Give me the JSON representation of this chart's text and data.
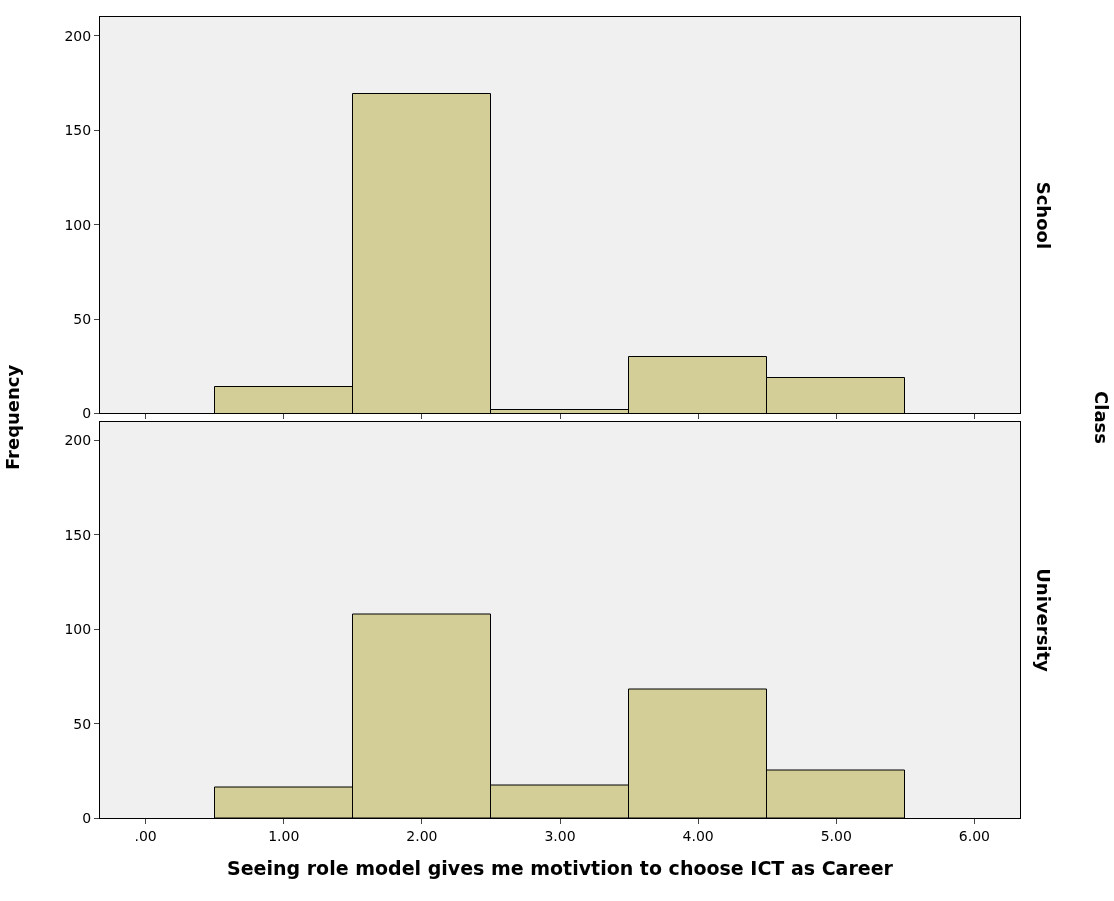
{
  "chart_data": [
    {
      "type": "histogram",
      "ylabel": "Frequency",
      "annotations": [
        "School",
        "Class"
      ],
      "bins": [
        0.5,
        1.5,
        2.5,
        3.5,
        4.5,
        5.5
      ],
      "values": [
        14,
        169,
        2,
        30,
        19
      ],
      "color": "#d3ce97",
      "xlim": [
        -0.33,
        6.33
      ],
      "xticks": [
        {
          "value": 0,
          "label": null
        },
        {
          "value": 1,
          "label": null
        },
        {
          "value": 2,
          "label": null
        },
        {
          "value": 3,
          "label": null
        },
        {
          "value": 4,
          "label": null
        },
        {
          "value": 5,
          "label": null
        },
        {
          "value": 6,
          "label": null
        }
      ],
      "ylim": [
        0,
        210
      ],
      "yticks": [
        0,
        50,
        100,
        150,
        200
      ],
      "tick_labels": "y",
      "grid": false
    },
    {
      "type": "histogram",
      "xlabel": "Seeing role model gives me motivtion to choose ICT as Career",
      "annotations": [
        "University"
      ],
      "bins": [
        0.5,
        1.5,
        2.5,
        3.5,
        4.5,
        5.5
      ],
      "values": [
        16,
        108,
        17,
        68,
        25
      ],
      "color": "#d3ce97",
      "xlim": [
        -0.33,
        6.33
      ],
      "xticks": [
        {
          "value": 0,
          "label": ".00"
        },
        {
          "value": 1,
          "label": "1.00"
        },
        {
          "value": 2,
          "label": "2.00"
        },
        {
          "value": 3,
          "label": "3.00"
        },
        {
          "value": 4,
          "label": "4.00"
        },
        {
          "value": 5,
          "label": "5.00"
        },
        {
          "value": 6,
          "label": "6.00"
        }
      ],
      "ylim": [
        0,
        210
      ],
      "yticks": [
        0,
        50,
        100,
        150,
        200
      ],
      "grid": false
    }
  ]
}
